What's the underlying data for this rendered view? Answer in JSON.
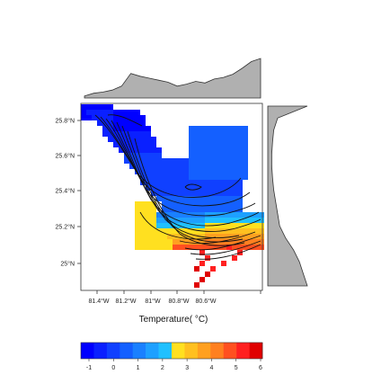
{
  "chart_data": {
    "type": "heatmap",
    "title": "",
    "xlabel": "Temperature( °C)",
    "ylabel": "",
    "x_ticks": [
      "81.4°W",
      "81.2°W",
      "81°W",
      "80.8°W",
      "80.6°W"
    ],
    "y_ticks": [
      "25.8°N",
      "25.6°N",
      "25.4°N",
      "25.2°N",
      "25°N"
    ],
    "colorbar": {
      "ticks": [
        "-1",
        "0",
        "1",
        "2",
        "3",
        "4",
        "5",
        "6"
      ],
      "range": [
        -1,
        6
      ],
      "colors": [
        "#0000ff",
        "#0a20ff",
        "#1040ff",
        "#1460ff",
        "#1a80ff",
        "#1ea0ff",
        "#20c0ff",
        "#ffe020",
        "#ffc020",
        "#ffa020",
        "#ff8020",
        "#ff5020",
        "#ff2020",
        "#e00000"
      ]
    },
    "top_marginal_profile": [
      0.05,
      0.12,
      0.15,
      0.2,
      0.3,
      0.62,
      0.55,
      0.5,
      0.45,
      0.4,
      0.3,
      0.35,
      0.42,
      0.38,
      0.48,
      0.52,
      0.6,
      0.75,
      0.92,
      1.0
    ],
    "right_marginal_profile": [
      1.0,
      0.25,
      0.15,
      0.12,
      0.1,
      0.1,
      0.12,
      0.15,
      0.2,
      0.25,
      0.3,
      0.45,
      0.65,
      0.8,
      0.9,
      1.0
    ]
  }
}
